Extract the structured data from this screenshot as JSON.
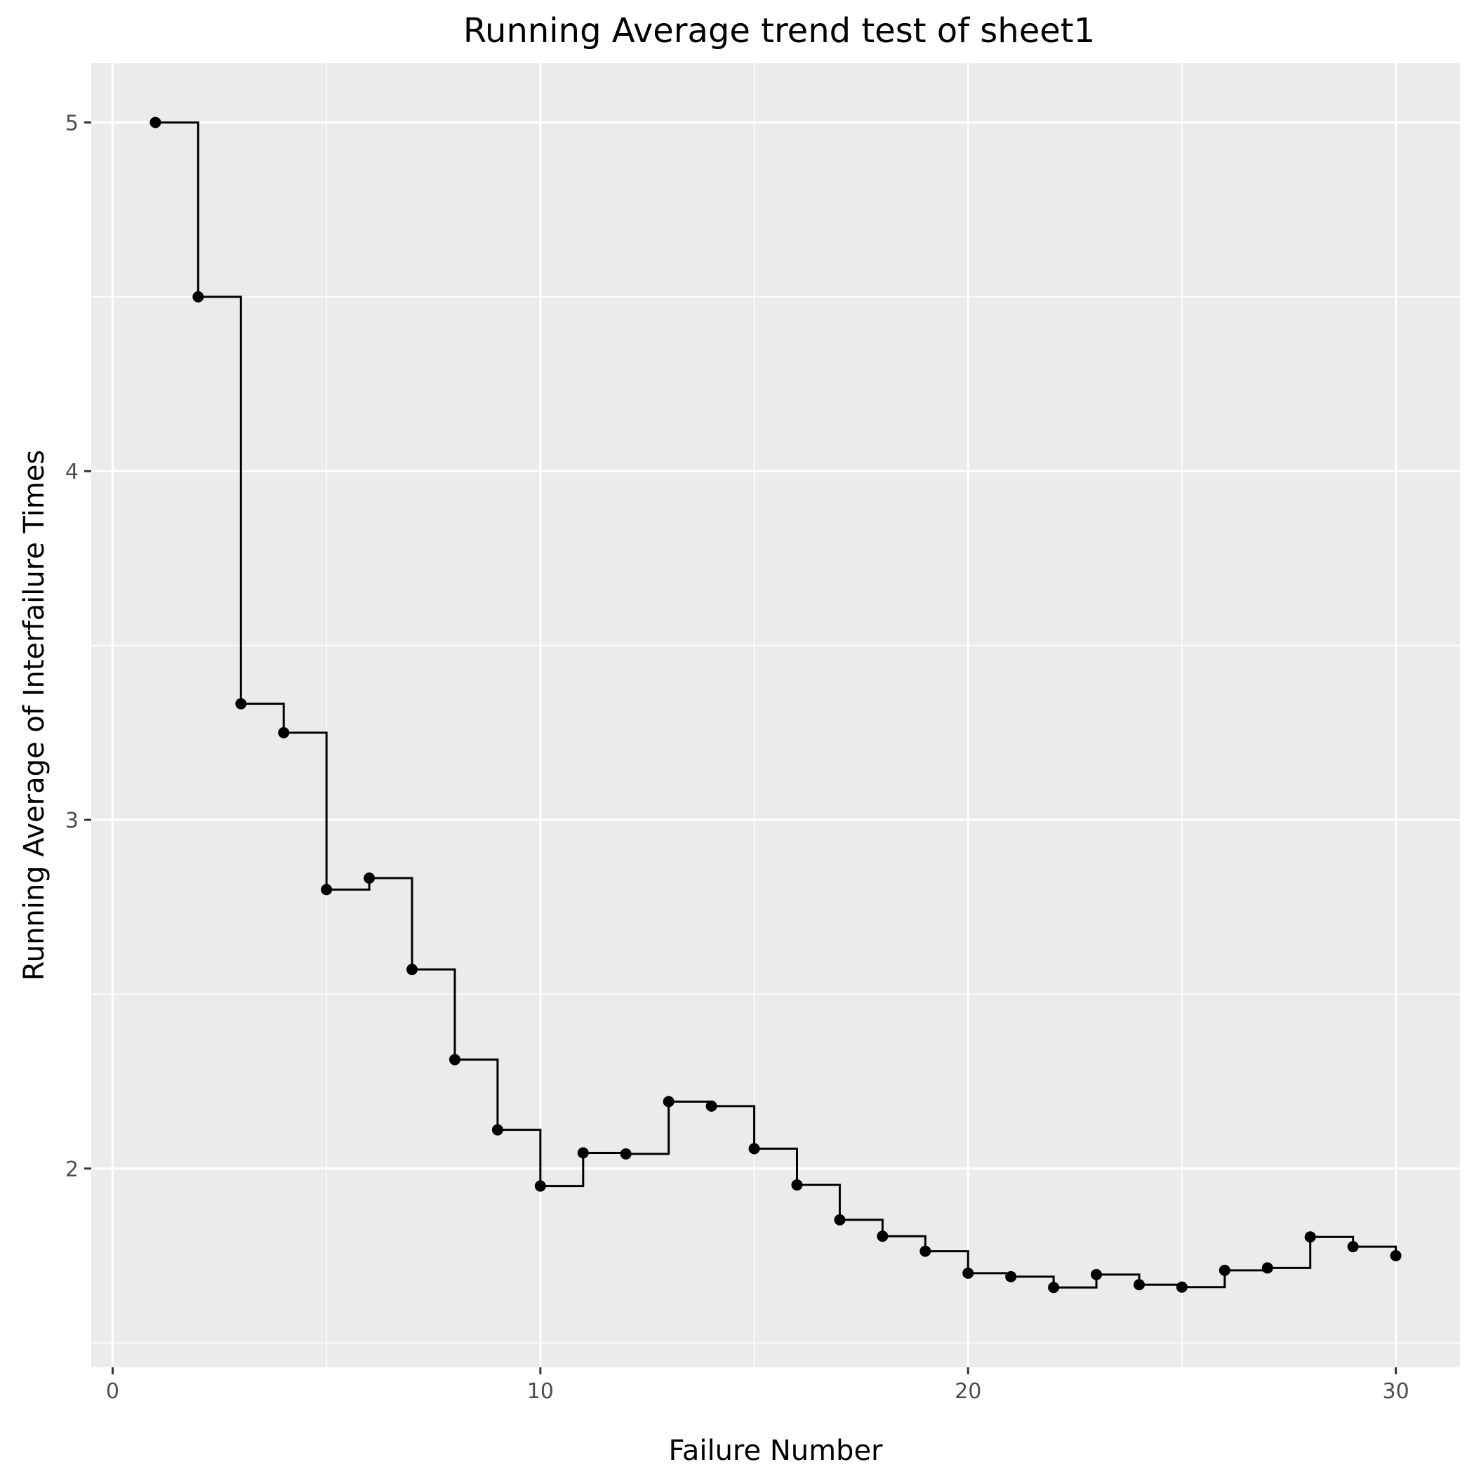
{
  "chart_data": {
    "type": "line",
    "style": "step",
    "title": "Running Average trend test of sheet1",
    "xlabel": "Failure Number",
    "ylabel": "Running Average of Interfailure Times",
    "xlim": [
      -0.5,
      31.5
    ],
    "ylim": [
      1.43,
      5.17
    ],
    "x_ticks": [
      0,
      10,
      20,
      30
    ],
    "y_ticks": [
      2,
      3,
      4,
      5
    ],
    "grid": true,
    "background": "#ebebeb",
    "series": [
      {
        "color": "#000000",
        "x": [
          1,
          2,
          3,
          4,
          5,
          6,
          7,
          8,
          9,
          10,
          11,
          12,
          13,
          14,
          15,
          16,
          17,
          18,
          19,
          20,
          21,
          22,
          23,
          24,
          25,
          26,
          27,
          28,
          29,
          30
        ],
        "y": [
          5.0,
          4.5,
          3.333,
          3.25,
          2.8,
          2.833,
          2.571,
          2.3125,
          2.111,
          1.95,
          2.045,
          2.042,
          2.192,
          2.179,
          2.057,
          1.953,
          1.853,
          1.806,
          1.763,
          1.7,
          1.69,
          1.659,
          1.696,
          1.667,
          1.66,
          1.708,
          1.715,
          1.804,
          1.776,
          1.75
        ]
      }
    ]
  }
}
